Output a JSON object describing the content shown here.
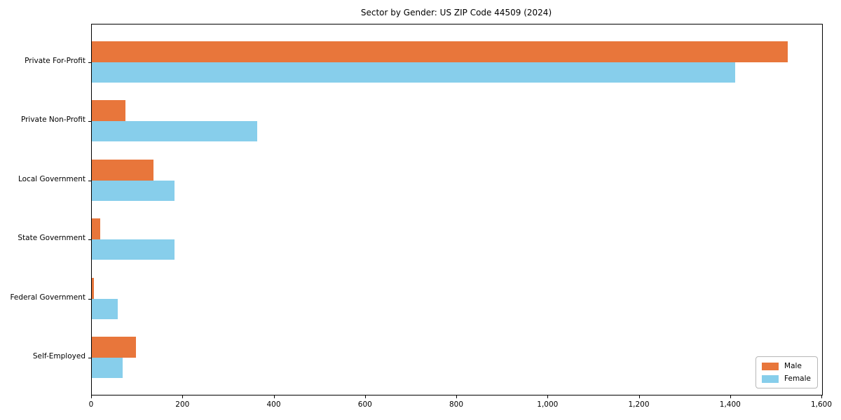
{
  "title": "Sector by Gender: US ZIP Code 44509 (2024)",
  "chart_data": {
    "type": "bar",
    "orientation": "horizontal",
    "title": "Sector by Gender: US ZIP Code 44509 (2024)",
    "categories": [
      "Private For-Profit",
      "Private Non-Profit",
      "Local Government",
      "State Government",
      "Federal Government",
      "Self-Employed"
    ],
    "series": [
      {
        "name": "Male",
        "color": "#e8763b",
        "values": [
          1525,
          73,
          135,
          18,
          5,
          97
        ]
      },
      {
        "name": "Female",
        "color": "#87ceeb",
        "values": [
          1410,
          362,
          181,
          181,
          57,
          68
        ]
      }
    ],
    "xlabel": "",
    "ylabel": "",
    "xlim": [
      0,
      1600
    ],
    "xticks": [
      0,
      200,
      400,
      600,
      800,
      1000,
      1200,
      1400,
      1600
    ],
    "xtick_labels": [
      "0",
      "200",
      "400",
      "600",
      "800",
      "1,000",
      "1,200",
      "1,400",
      "1,600"
    ],
    "grid": false,
    "legend_position": "lower right"
  }
}
